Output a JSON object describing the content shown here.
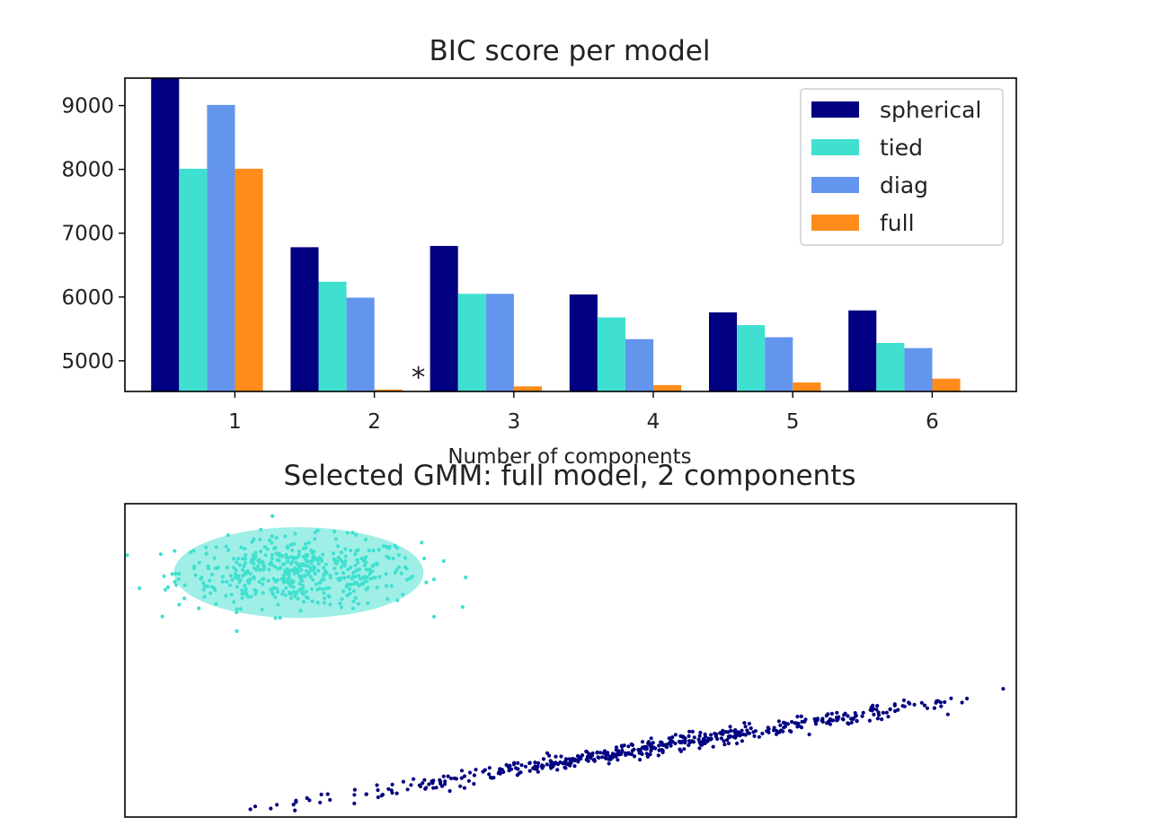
{
  "chart_data": [
    {
      "type": "bar",
      "title": "BIC score per model",
      "xlabel": "Number of components",
      "ylabel": "",
      "categories": [
        "1",
        "2",
        "3",
        "4",
        "5",
        "6"
      ],
      "ylim": [
        4520,
        9430
      ],
      "yticks": [
        "5000",
        "6000",
        "7000",
        "8000",
        "9000"
      ],
      "legend_position": "top-right",
      "annotation": {
        "text": "*",
        "category": "2"
      },
      "series": [
        {
          "name": "spherical",
          "color": "#000080",
          "values": [
            9430,
            6780,
            6800,
            6040,
            5760,
            5790
          ]
        },
        {
          "name": "tied",
          "color": "#40E0D0",
          "values": [
            8010,
            6240,
            6050,
            5680,
            5560,
            5280
          ]
        },
        {
          "name": "diag",
          "color": "#6495ED",
          "values": [
            9010,
            5990,
            6050,
            5340,
            5370,
            5200
          ]
        },
        {
          "name": "full",
          "color": "#FF8C1A",
          "values": [
            8010,
            4550,
            4600,
            4620,
            4660,
            4720
          ]
        }
      ]
    },
    {
      "type": "scatter",
      "title": "Selected GMM: full model, 2 components",
      "xlabel": "",
      "ylabel": "",
      "xlim": [
        -10,
        10
      ],
      "ylim": [
        -10,
        10
      ],
      "axis_ticks": false,
      "clusters": [
        {
          "color": "#40E0D0",
          "center": [
            -6.1,
            5.6
          ],
          "spread": [
            1.35,
            1.1
          ],
          "n": 500,
          "ellipse": {
            "center": [
              -6.1,
              5.6
            ],
            "width": 5.6,
            "height": 5.8,
            "angle": 0
          }
        },
        {
          "color": "#000080",
          "along_from": [
            -5.0,
            -8.7
          ],
          "along_to": [
            9.0,
            -2.3
          ],
          "thickness": 0.25,
          "n": 500
        }
      ]
    }
  ]
}
